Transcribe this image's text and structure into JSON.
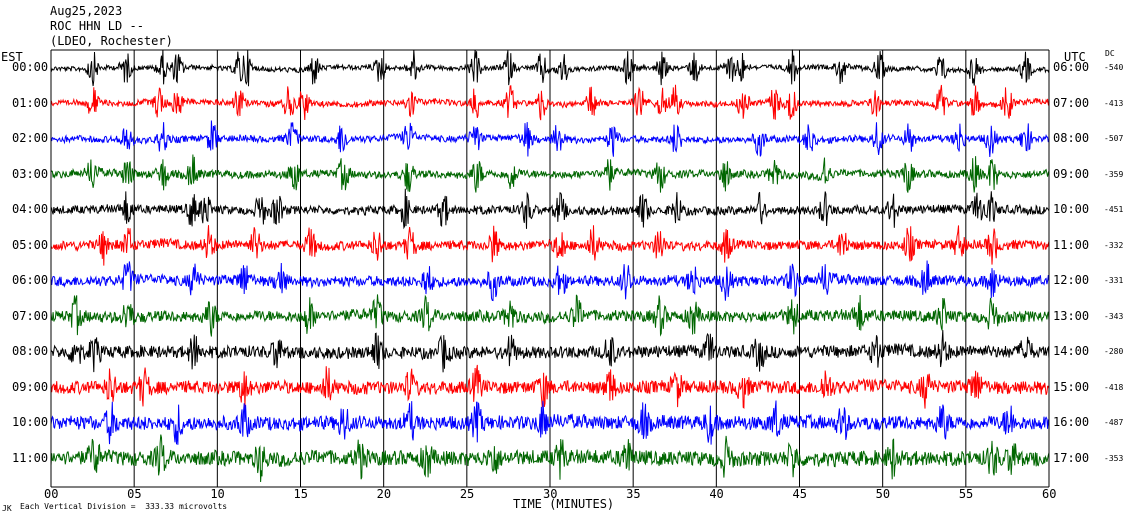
{
  "header": {
    "date": "Aug25,2023",
    "station": "ROC HHN LD --",
    "network": "(LDEO, Rochester)"
  },
  "chart_data": {
    "type": "line",
    "title": "",
    "xlabel": "TIME (MINUTES)",
    "left_axis_label": "EST",
    "right_axis_label": "UTC",
    "dc_label": "DC",
    "xlim": [
      0,
      60
    ],
    "x_ticks": [
      "00",
      "05",
      "10",
      "15",
      "20",
      "25",
      "30",
      "35",
      "40",
      "45",
      "50",
      "55",
      "60"
    ],
    "footer_note": "Each Vertical Division =  333.33 microvolts",
    "footer_mark": "JK",
    "colors": [
      "#000000",
      "#ff0000",
      "#0000ff",
      "#006600"
    ],
    "rows": [
      {
        "est": "00:00",
        "utc": "06:00",
        "dc": "-540"
      },
      {
        "est": "01:00",
        "utc": "07:00",
        "dc": "-413"
      },
      {
        "est": "02:00",
        "utc": "08:00",
        "dc": "-507"
      },
      {
        "est": "03:00",
        "utc": "09:00",
        "dc": "-359"
      },
      {
        "est": "04:00",
        "utc": "10:00",
        "dc": "-451"
      },
      {
        "est": "05:00",
        "utc": "11:00",
        "dc": "-332"
      },
      {
        "est": "06:00",
        "utc": "12:00",
        "dc": "-331"
      },
      {
        "est": "07:00",
        "utc": "13:00",
        "dc": "-343"
      },
      {
        "est": "08:00",
        "utc": "14:00",
        "dc": "-280"
      },
      {
        "est": "09:00",
        "utc": "15:00",
        "dc": "-418"
      },
      {
        "est": "10:00",
        "utc": "16:00",
        "dc": "-487"
      },
      {
        "est": "11:00",
        "utc": "17:00",
        "dc": "-353"
      }
    ],
    "bursts": [
      [
        2.5,
        4.5,
        6.7,
        7.6,
        11.3,
        11.8,
        15.8,
        19.8,
        21.8,
        25.5,
        27.5,
        29.5,
        30.8,
        34.7,
        36.7,
        38.7,
        40.8,
        41.5,
        44.6,
        47.5,
        49.8,
        53.5,
        55.5,
        58.6
      ],
      [
        2.5,
        6.5,
        7.6,
        11.3,
        14.3,
        15.2,
        21.6,
        25.5,
        27.6,
        29.5,
        32.5,
        35.4,
        36.7,
        37.5,
        41.6,
        43.5,
        44.5,
        49.5,
        53.5,
        55.6,
        57.5
      ],
      [
        4.5,
        6.7,
        9.7,
        14.5,
        17.5,
        21.5,
        25.5,
        28.6,
        30.5,
        33.8,
        37.6,
        42.6,
        45.6,
        49.7,
        51.6,
        54.6,
        56.5,
        58.6
      ],
      [
        2.5,
        4.6,
        6.7,
        8.5,
        14.6,
        17.6,
        21.5,
        25.6,
        27.7,
        33.5,
        36.6,
        40.5,
        43.5,
        46.5,
        51.5,
        55.5,
        56.6
      ],
      [
        4.6,
        8.5,
        9.3,
        12.6,
        13.6,
        21.3,
        23.6,
        28.6,
        30.6,
        35.6,
        37.6,
        42.6,
        46.5,
        50.6,
        55.7,
        56.5
      ],
      [
        3.2,
        4.6,
        9.5,
        12.3,
        15.6,
        19.6,
        21.6,
        26.6,
        30.6,
        32.6,
        36.6,
        40.6,
        47.6,
        51.6,
        54.6,
        56.6
      ],
      [
        4.6,
        8.6,
        11.6,
        13.8,
        22.6,
        26.6,
        30.6,
        34.6,
        38.6,
        40.6,
        44.6,
        46.6,
        52.6,
        56.6
      ],
      [
        1.5,
        4.6,
        9.6,
        15.5,
        19.6,
        22.6,
        27.6,
        31.6,
        36.6,
        38.6,
        44.6,
        48.6,
        53.6,
        56.6
      ],
      [
        1.5,
        2.6,
        8.6,
        13.6,
        19.6,
        23.6,
        27.6,
        33.6,
        39.6,
        42.6,
        49.6,
        53.6,
        58.6
      ],
      [
        3.6,
        5.6,
        11.6,
        16.6,
        21.6,
        25.6,
        29.6,
        33.6,
        37.6,
        41.6,
        46.6,
        52.6,
        55.6
      ],
      [
        3.6,
        7.6,
        11.6,
        17.6,
        21.6,
        25.6,
        29.6,
        35.6,
        39.6,
        43.6,
        47.6,
        53.6,
        57.6
      ],
      [
        2.6,
        6.6,
        12.6,
        18.6,
        22.6,
        26.6,
        30.6,
        34.6,
        40.6,
        44.6,
        50.6,
        56.6,
        57.8
      ]
    ]
  }
}
